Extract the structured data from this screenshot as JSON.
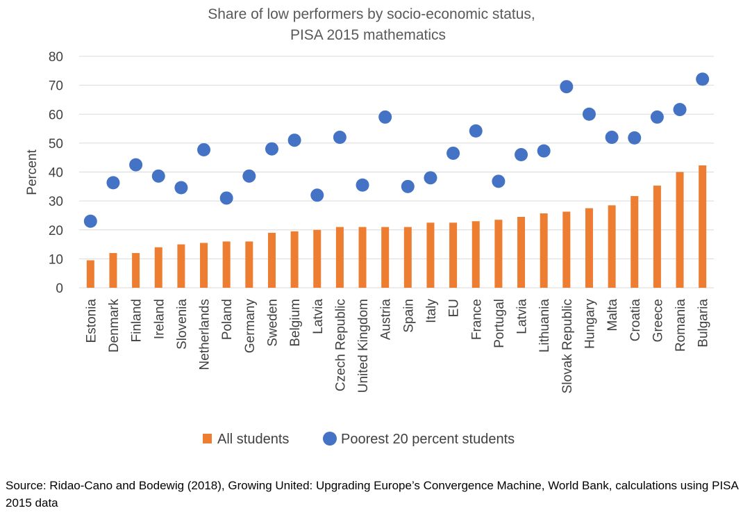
{
  "chart_data": {
    "type": "bar",
    "title_lines": [
      "Share of low performers by socio-economic status,",
      "PISA 2015 mathematics"
    ],
    "xlabel": "",
    "ylabel": "Percent",
    "ylim": [
      0,
      80
    ],
    "yticks": [
      0,
      10,
      20,
      30,
      40,
      50,
      60,
      70,
      80
    ],
    "grid": true,
    "legend_position": "bottom",
    "categories": [
      "Estonia",
      "Denmark",
      "Finland",
      "Ireland",
      "Slovenia",
      "Netherlands",
      "Poland",
      "Germany",
      "Sweden",
      "Belgium",
      "Latvia",
      "Czech Republic",
      "United Kingdom",
      "Austria",
      "Spain",
      "Italy",
      "EU",
      "France",
      "Portugal",
      "Latvia",
      "Lithuania",
      "Slovak Republic",
      "Hungary",
      "Malta",
      "Croatia",
      "Greece",
      "Romania",
      "Bulgaria"
    ],
    "series": [
      {
        "name": "All students",
        "kind": "bar",
        "color": "#ed7d31",
        "values": [
          9.5,
          12,
          12,
          14,
          15,
          15.5,
          16,
          16,
          19,
          19.5,
          20,
          21,
          21,
          21,
          21,
          22.5,
          22.5,
          23,
          23.5,
          24.5,
          25.7,
          26.3,
          27.5,
          28.5,
          31.7,
          35.3,
          40,
          42.3
        ]
      },
      {
        "name": "Poorest 20 percent students",
        "kind": "scatter",
        "color": "#4472c4",
        "values": [
          23,
          36.3,
          42.5,
          38.6,
          34.6,
          47.7,
          31,
          38.6,
          48,
          51,
          32,
          52,
          35.5,
          59,
          35,
          38,
          46.5,
          54.2,
          36.8,
          46,
          47.3,
          69.5,
          60,
          52,
          51.8,
          59,
          61.6,
          72.1
        ]
      }
    ]
  },
  "source_note": "Source: Ridao-Cano and Bodewig (2018), Growing United: Upgrading Europe’s Convergence Machine, World Bank, calculations using PISA 2015 data"
}
